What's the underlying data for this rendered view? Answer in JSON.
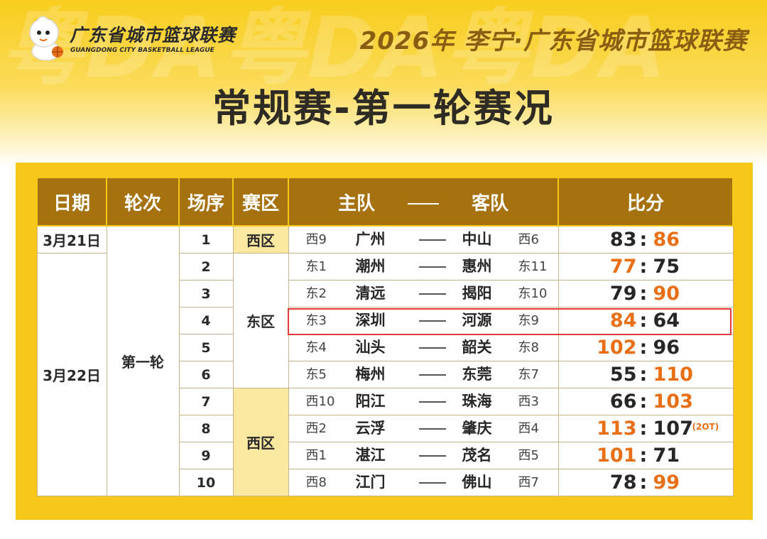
{
  "header": {
    "logo_cn": "广东省城市篮球联赛",
    "logo_en": "GUANGDONG CITY BASKETBALL LEAGUE",
    "event_title": "2026年 李宁·广东省城市篮球联赛",
    "watermark": "粤DA粤DA粤DA"
  },
  "page_title": "常规赛-第一轮赛况",
  "table": {
    "columns": [
      "日期",
      "轮次",
      "场序",
      "赛区",
      "主队",
      "客队",
      "比分"
    ],
    "dates": [
      "3月21日",
      "3月22日"
    ],
    "round": "第一轮",
    "zones": [
      "西区",
      "东区",
      "西区"
    ],
    "matches": [
      {
        "order": "1",
        "home_rank": "西9",
        "home": "广州",
        "away": "中山",
        "away_rank": "西6",
        "home_score": "83",
        "away_score": "86",
        "winner": "away",
        "note": ""
      },
      {
        "order": "2",
        "home_rank": "东1",
        "home": "潮州",
        "away": "惠州",
        "away_rank": "东11",
        "home_score": "77",
        "away_score": "75",
        "winner": "home",
        "note": ""
      },
      {
        "order": "3",
        "home_rank": "东2",
        "home": "清远",
        "away": "揭阳",
        "away_rank": "东10",
        "home_score": "79",
        "away_score": "90",
        "winner": "away",
        "note": ""
      },
      {
        "order": "4",
        "home_rank": "东3",
        "home": "深圳",
        "away": "河源",
        "away_rank": "东9",
        "home_score": "84",
        "away_score": "64",
        "winner": "home",
        "note": ""
      },
      {
        "order": "5",
        "home_rank": "东4",
        "home": "汕头",
        "away": "韶关",
        "away_rank": "东8",
        "home_score": "102",
        "away_score": "96",
        "winner": "home",
        "note": ""
      },
      {
        "order": "6",
        "home_rank": "东5",
        "home": "梅州",
        "away": "东莞",
        "away_rank": "东7",
        "home_score": "55",
        "away_score": "110",
        "winner": "away",
        "note": ""
      },
      {
        "order": "7",
        "home_rank": "西10",
        "home": "阳江",
        "away": "珠海",
        "away_rank": "西3",
        "home_score": "66",
        "away_score": "103",
        "winner": "away",
        "note": ""
      },
      {
        "order": "8",
        "home_rank": "西2",
        "home": "云浮",
        "away": "肇庆",
        "away_rank": "西4",
        "home_score": "113",
        "away_score": "107",
        "winner": "home",
        "note": "(2OT)"
      },
      {
        "order": "9",
        "home_rank": "西1",
        "home": "湛江",
        "away": "茂名",
        "away_rank": "西5",
        "home_score": "101",
        "away_score": "71",
        "winner": "home",
        "note": ""
      },
      {
        "order": "10",
        "home_rank": "西8",
        "home": "江门",
        "away": "佛山",
        "away_rank": "西7",
        "home_score": "78",
        "away_score": "99",
        "winner": "away",
        "note": ""
      }
    ],
    "highlighted_match": "4"
  },
  "colors": {
    "winner": "#e86f16",
    "loser": "#262626",
    "header_bg": "#a5720f",
    "panel": "#f7c81a",
    "highlight_border": "#e23a3a"
  }
}
